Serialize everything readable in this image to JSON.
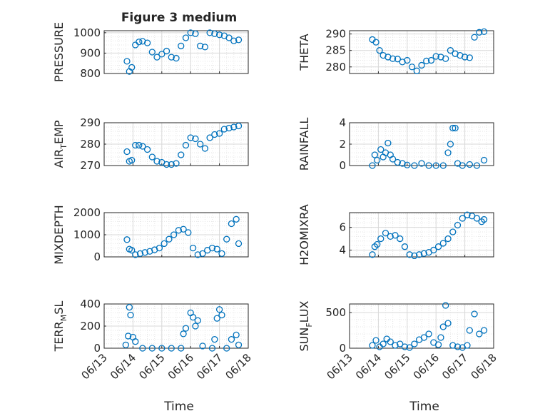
{
  "figure": {
    "title": "Figure 3 medium",
    "x_axis_label": "Time",
    "x_tick_labels": [
      "06/13",
      "06/14",
      "06/15",
      "06/16",
      "06/17",
      "06/18"
    ]
  },
  "colors": {
    "marker": "#0072BD",
    "axis": "#262626",
    "grid": "#d9d9d9",
    "minor_grid": "#e6e6e6"
  },
  "chart_data": [
    {
      "type": "scatter",
      "ylabel": "PRESSURE",
      "ylim": [
        800,
        1010
      ],
      "yticks": [
        800,
        900,
        1000
      ],
      "xlim": [
        "06/13",
        "06/18"
      ],
      "grid": true,
      "x": [
        "06/13 19:00",
        "06/13 21:00",
        "06/13 23:00",
        "06/14 02:00",
        "06/14 05:00",
        "06/14 08:00",
        "06/14 12:00",
        "06/14 16:00",
        "06/14 20:00",
        "06/15 00:00",
        "06/15 04:00",
        "06/15 08:00",
        "06/15 12:00",
        "06/15 16:00",
        "06/15 20:00",
        "06/16 00:00",
        "06/16 04:00",
        "06/16 08:00",
        "06/16 12:00",
        "06/16 16:00",
        "06/16 20:00",
        "06/17 00:00",
        "06/17 04:00",
        "06/17 08:00",
        "06/17 12:00",
        "06/17 16:00"
      ],
      "y": [
        860,
        810,
        830,
        940,
        955,
        958,
        950,
        905,
        880,
        895,
        910,
        880,
        875,
        935,
        975,
        1000,
        995,
        935,
        930,
        1000,
        995,
        990,
        985,
        975,
        960,
        965
      ]
    },
    {
      "type": "scatter",
      "ylabel": "THETA",
      "ylim": [
        278,
        291
      ],
      "yticks": [
        280,
        285,
        290
      ],
      "xlim": [
        "06/13",
        "06/18"
      ],
      "grid": true,
      "x": [
        "06/13 19:00",
        "06/13 22:00",
        "06/14 01:00",
        "06/14 04:00",
        "06/14 08:00",
        "06/14 12:00",
        "06/14 16:00",
        "06/14 20:00",
        "06/15 00:00",
        "06/15 04:00",
        "06/15 08:00",
        "06/15 12:00",
        "06/15 16:00",
        "06/15 20:00",
        "06/16 00:00",
        "06/16 04:00",
        "06/16 08:00",
        "06/16 12:00",
        "06/16 16:00",
        "06/16 20:00",
        "06/17 00:00",
        "06/17 04:00",
        "06/17 08:00",
        "06/17 12:00",
        "06/17 16:00"
      ],
      "y": [
        288.3,
        287.5,
        285,
        283.5,
        283,
        282.5,
        282.4,
        281.5,
        282,
        280,
        278.8,
        280.5,
        281.8,
        282,
        283.2,
        283,
        282.5,
        285,
        284,
        283.5,
        283,
        282.8,
        289,
        290.5,
        290.7
      ]
    },
    {
      "type": "scatter",
      "ylabel": "AIR_TEMP",
      "ylim": [
        270,
        290
      ],
      "yticks": [
        270,
        280,
        290
      ],
      "xlim": [
        "06/13",
        "06/18"
      ],
      "grid": true,
      "x": [
        "06/13 19:00",
        "06/13 21:00",
        "06/13 23:00",
        "06/14 02:00",
        "06/14 05:00",
        "06/14 08:00",
        "06/14 12:00",
        "06/14 16:00",
        "06/14 20:00",
        "06/15 00:00",
        "06/15 04:00",
        "06/15 08:00",
        "06/15 12:00",
        "06/15 16:00",
        "06/15 20:00",
        "06/16 00:00",
        "06/16 04:00",
        "06/16 08:00",
        "06/16 12:00",
        "06/16 16:00",
        "06/16 20:00",
        "06/17 00:00",
        "06/17 04:00",
        "06/17 08:00",
        "06/17 12:00",
        "06/17 16:00"
      ],
      "y": [
        276.5,
        272,
        272.5,
        279.5,
        279.5,
        279,
        277.5,
        274,
        272,
        271.5,
        270.5,
        270.5,
        271,
        275,
        279.5,
        283,
        282.5,
        280,
        278,
        283,
        284.5,
        285,
        287,
        287.5,
        288,
        288.5
      ]
    },
    {
      "type": "scatter",
      "ylabel": "RAINFALL",
      "ylim": [
        0,
        4
      ],
      "yticks": [
        0,
        2,
        4
      ],
      "xlim": [
        "06/13",
        "06/18"
      ],
      "grid": true,
      "x": [
        "06/13 19:00",
        "06/13 21:00",
        "06/13 23:00",
        "06/14 02:00",
        "06/14 04:00",
        "06/14 06:00",
        "06/14 08:00",
        "06/14 10:00",
        "06/14 12:00",
        "06/14 16:00",
        "06/14 20:00",
        "06/15 00:00",
        "06/15 06:00",
        "06/15 12:00",
        "06/15 18:00",
        "06/16 00:00",
        "06/16 06:00",
        "06/16 10:00",
        "06/16 12:00",
        "06/16 14:00",
        "06/16 16:00",
        "06/16 18:00",
        "06/16 22:00",
        "06/17 04:00",
        "06/17 10:00",
        "06/17 16:00"
      ],
      "y": [
        0,
        1,
        0.5,
        1.5,
        0.8,
        1.2,
        2.1,
        1.0,
        0.6,
        0.3,
        0.2,
        0.05,
        0,
        0.2,
        0,
        0,
        0,
        1.2,
        2.0,
        3.5,
        3.5,
        0.2,
        0,
        0.1,
        0,
        0.5
      ]
    },
    {
      "type": "scatter",
      "ylabel": "MIXDEPTH",
      "ylim": [
        0,
        2000
      ],
      "yticks": [
        0,
        1000,
        2000
      ],
      "xlim": [
        "06/13",
        "06/18"
      ],
      "grid": true,
      "x": [
        "06/13 19:00",
        "06/13 21:00",
        "06/13 23:00",
        "06/14 02:00",
        "06/14 06:00",
        "06/14 10:00",
        "06/14 14:00",
        "06/14 18:00",
        "06/14 22:00",
        "06/15 02:00",
        "06/15 06:00",
        "06/15 10:00",
        "06/15 14:00",
        "06/15 18:00",
        "06/15 22:00",
        "06/16 02:00",
        "06/16 06:00",
        "06/16 10:00",
        "06/16 14:00",
        "06/16 18:00",
        "06/16 22:00",
        "06/17 02:00",
        "06/17 06:00",
        "06/17 10:00",
        "06/17 14:00",
        "06/17 16:00"
      ],
      "y": [
        780,
        350,
        300,
        100,
        150,
        200,
        250,
        320,
        400,
        600,
        800,
        1000,
        1200,
        1250,
        1100,
        400,
        100,
        150,
        300,
        400,
        350,
        150,
        800,
        1500,
        1700,
        600
      ]
    },
    {
      "type": "scatter",
      "ylabel": "H2OMIXRA",
      "ylim": [
        3.4,
        7.3
      ],
      "yticks": [
        4,
        6
      ],
      "xlim": [
        "06/13",
        "06/18"
      ],
      "grid": true,
      "x": [
        "06/13 19:00",
        "06/13 21:00",
        "06/13 23:00",
        "06/14 02:00",
        "06/14 06:00",
        "06/14 10:00",
        "06/14 14:00",
        "06/14 18:00",
        "06/14 22:00",
        "06/15 02:00",
        "06/15 06:00",
        "06/15 10:00",
        "06/15 14:00",
        "06/15 18:00",
        "06/15 22:00",
        "06/16 02:00",
        "06/16 06:00",
        "06/16 10:00",
        "06/16 14:00",
        "06/16 18:00",
        "06/16 22:00",
        "06/17 02:00",
        "06/17 06:00",
        "06/17 10:00",
        "06/17 14:00",
        "06/17 16:00"
      ],
      "y": [
        3.6,
        4.3,
        4.5,
        5.0,
        5.5,
        5.2,
        5.3,
        5.0,
        4.3,
        3.6,
        3.5,
        3.6,
        3.7,
        3.8,
        4.0,
        4.3,
        4.6,
        5.0,
        5.6,
        6.2,
        6.8,
        7.1,
        7.0,
        6.8,
        6.5,
        6.7
      ]
    },
    {
      "type": "scatter",
      "ylabel": "TERR_MSL",
      "ylim": [
        0,
        400
      ],
      "yticks": [
        0,
        200,
        400
      ],
      "xlim": [
        "06/13",
        "06/18"
      ],
      "grid": true,
      "x": [
        "06/13 18:00",
        "06/13 20:00",
        "06/13 21:00",
        "06/13 22:00",
        "06/14 00:00",
        "06/14 02:00",
        "06/14 08:00",
        "06/14 16:00",
        "06/15 00:00",
        "06/15 08:00",
        "06/15 16:00",
        "06/15 18:00",
        "06/15 20:00",
        "06/16 00:00",
        "06/16 02:00",
        "06/16 04:00",
        "06/16 06:00",
        "06/16 10:00",
        "06/16 18:00",
        "06/16 20:00",
        "06/16 22:00",
        "06/17 00:00",
        "06/17 02:00",
        "06/17 06:00",
        "06/17 10:00",
        "06/17 14:00",
        "06/17 16:00"
      ],
      "y": [
        30,
        110,
        370,
        300,
        100,
        60,
        0,
        0,
        0,
        0,
        0,
        130,
        180,
        320,
        280,
        200,
        250,
        20,
        0,
        80,
        270,
        350,
        300,
        0,
        80,
        120,
        30
      ]
    },
    {
      "type": "scatter",
      "ylabel": "SUN_FLUX",
      "ylim": [
        0,
        620
      ],
      "yticks": [
        0,
        500
      ],
      "xlim": [
        "06/13",
        "06/18"
      ],
      "grid": true,
      "x": [
        "06/13 19:00",
        "06/13 22:00",
        "06/14 01:00",
        "06/14 04:00",
        "06/14 07:00",
        "06/14 10:00",
        "06/14 14:00",
        "06/14 18:00",
        "06/14 22:00",
        "06/15 02:00",
        "06/15 06:00",
        "06/15 10:00",
        "06/15 14:00",
        "06/15 18:00",
        "06/15 22:00",
        "06/16 02:00",
        "06/16 04:00",
        "06/16 06:00",
        "06/16 08:00",
        "06/16 10:00",
        "06/16 14:00",
        "06/16 18:00",
        "06/16 22:00",
        "06/17 02:00",
        "06/17 04:00",
        "06/17 08:00",
        "06/17 12:00",
        "06/17 16:00"
      ],
      "y": [
        40,
        110,
        20,
        60,
        130,
        90,
        40,
        60,
        20,
        10,
        60,
        120,
        150,
        200,
        80,
        50,
        150,
        300,
        600,
        350,
        40,
        20,
        10,
        40,
        250,
        480,
        200,
        250
      ]
    }
  ]
}
